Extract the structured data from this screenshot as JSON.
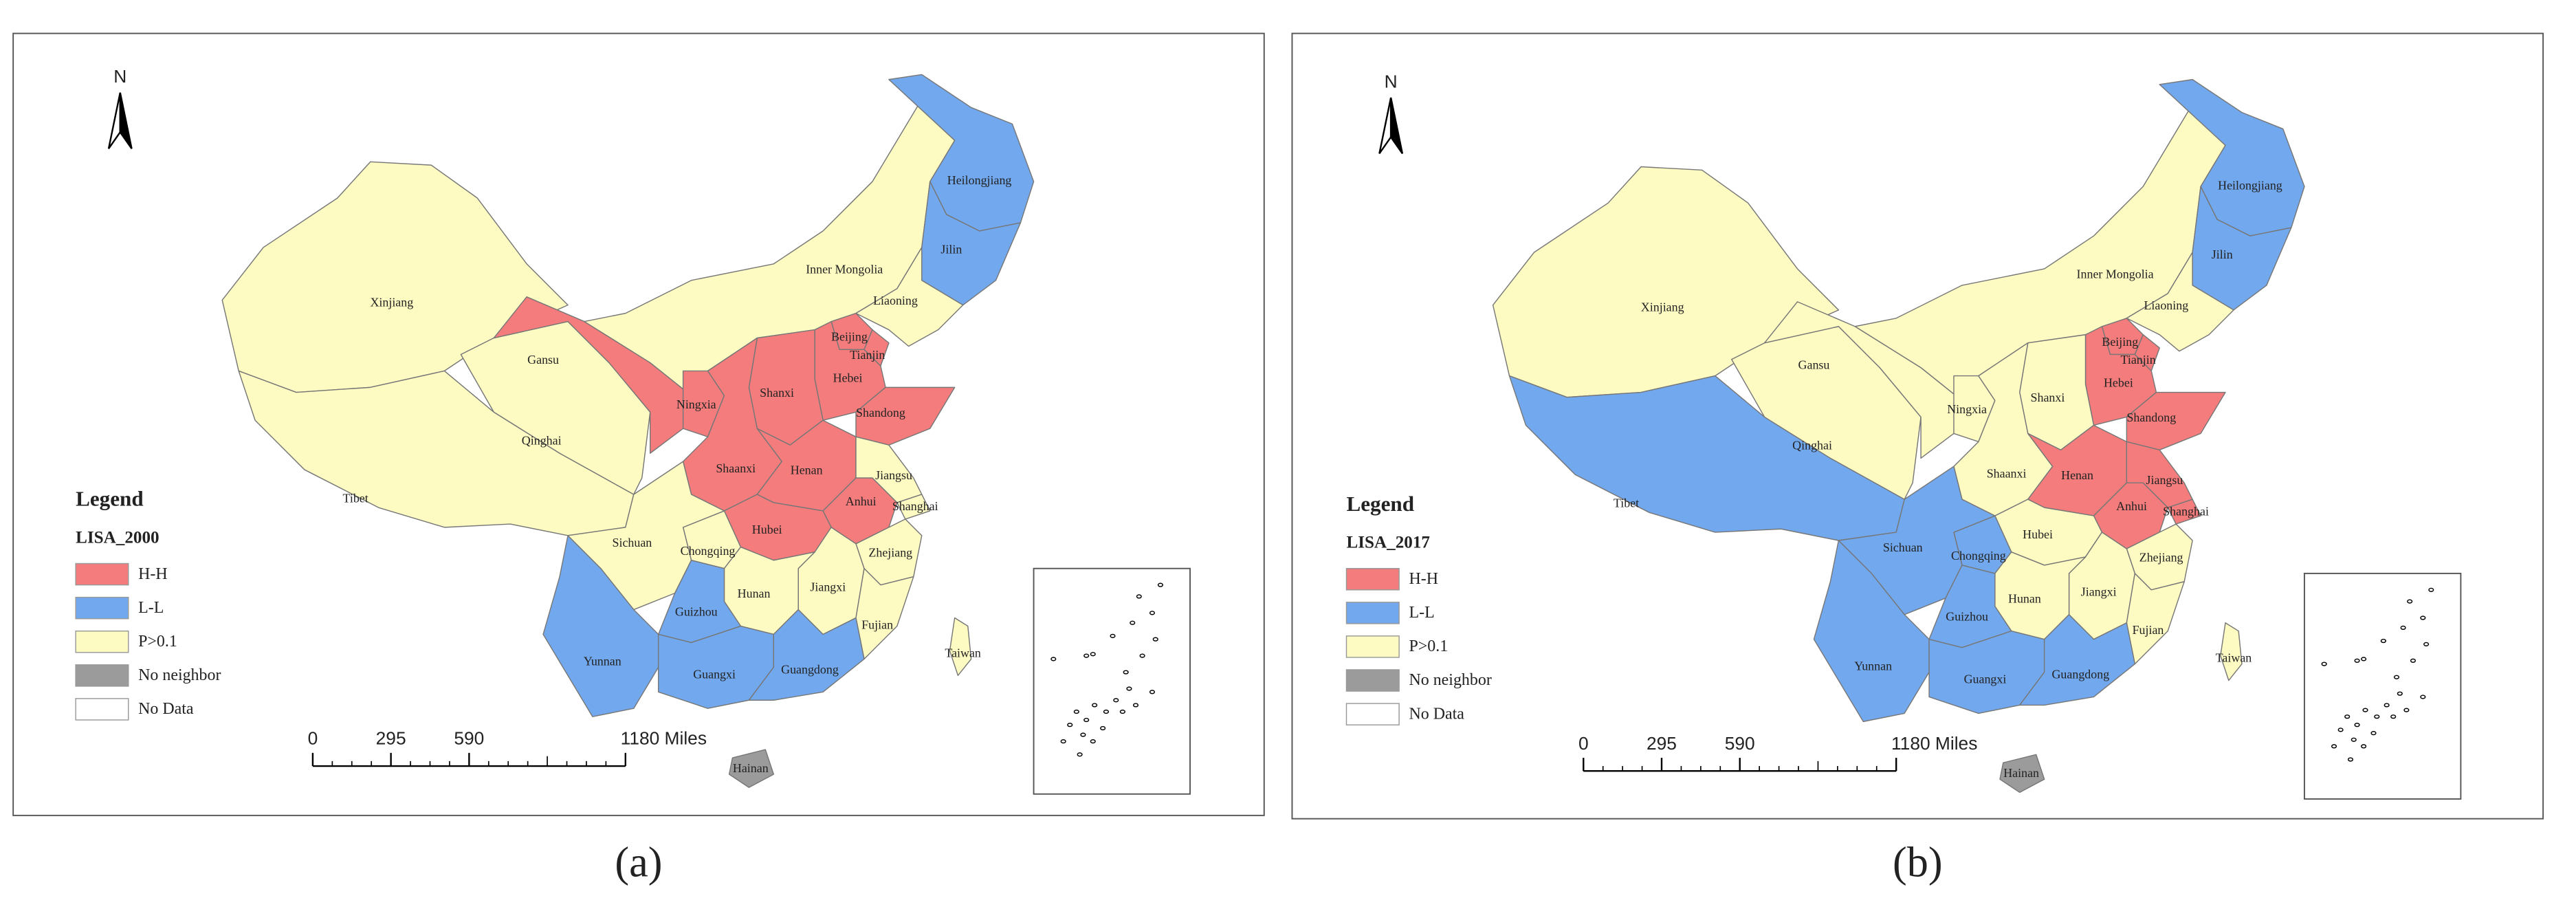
{
  "panels": [
    {
      "caption": "(a)",
      "north": "N",
      "legend": {
        "title": "Legend",
        "field": "LISA_2000",
        "classes": [
          {
            "label": "H-H",
            "color": "#f47c7c"
          },
          {
            "label": "L-L",
            "color": "#72a8ee"
          },
          {
            "label": "P>0.1",
            "color": "#fdfbc2"
          },
          {
            "label": "No neighbor",
            "color": "#9b9b9b"
          },
          {
            "label": "No Data",
            "color": "#ffffff"
          }
        ]
      },
      "scale_bar": {
        "ticks": [
          0,
          295,
          590,
          {
            "value": 1180,
            "label": "1180 Miles"
          }
        ]
      },
      "provinces": [
        {
          "name": "Xinjiang",
          "color": "#fdfbc2"
        },
        {
          "name": "Tibet",
          "color": "#fdfbc2"
        },
        {
          "name": "Qinghai",
          "color": "#fdfbc2"
        },
        {
          "name": "Gansu",
          "color": "#f47c7c"
        },
        {
          "name": "Inner Mongolia",
          "color": "#fdfbc2"
        },
        {
          "name": "Heilongjiang",
          "color": "#72a8ee"
        },
        {
          "name": "Jilin",
          "color": "#72a8ee"
        },
        {
          "name": "Liaoning",
          "color": "#fdfbc2"
        },
        {
          "name": "Beijing",
          "color": "#f47c7c"
        },
        {
          "name": "Tianjin",
          "color": "#f47c7c"
        },
        {
          "name": "Hebei",
          "color": "#f47c7c"
        },
        {
          "name": "Shanxi",
          "color": "#f47c7c"
        },
        {
          "name": "Shandong",
          "color": "#f47c7c"
        },
        {
          "name": "Ningxia",
          "color": "#f47c7c"
        },
        {
          "name": "Shaanxi",
          "color": "#f47c7c"
        },
        {
          "name": "Henan",
          "color": "#f47c7c"
        },
        {
          "name": "Jiangsu",
          "color": "#fdfbc2"
        },
        {
          "name": "Anhui",
          "color": "#f47c7c"
        },
        {
          "name": "Shanghai",
          "color": "#fdfbc2"
        },
        {
          "name": "Hubei",
          "color": "#f47c7c"
        },
        {
          "name": "Chongqing",
          "color": "#fdfbc2"
        },
        {
          "name": "Sichuan",
          "color": "#fdfbc2"
        },
        {
          "name": "Zhejiang",
          "color": "#fdfbc2"
        },
        {
          "name": "Jiangxi",
          "color": "#fdfbc2"
        },
        {
          "name": "Hunan",
          "color": "#fdfbc2"
        },
        {
          "name": "Guizhou",
          "color": "#72a8ee"
        },
        {
          "name": "Fujian",
          "color": "#fdfbc2"
        },
        {
          "name": "Yunnan",
          "color": "#72a8ee"
        },
        {
          "name": "Guangxi",
          "color": "#72a8ee"
        },
        {
          "name": "Guangdong",
          "color": "#72a8ee"
        },
        {
          "name": "Taiwan",
          "color": "#fdfbc2"
        },
        {
          "name": "Hainan",
          "color": "#9b9b9b"
        }
      ]
    },
    {
      "caption": "(b)",
      "north": "N",
      "legend": {
        "title": "Legend",
        "field": "LISA_2017",
        "classes": [
          {
            "label": "H-H",
            "color": "#f47c7c"
          },
          {
            "label": "L-L",
            "color": "#72a8ee"
          },
          {
            "label": "P>0.1",
            "color": "#fdfbc2"
          },
          {
            "label": "No neighbor",
            "color": "#9b9b9b"
          },
          {
            "label": "No Data",
            "color": "#ffffff"
          }
        ]
      },
      "scale_bar": {
        "ticks": [
          0,
          295,
          590,
          {
            "value": 1180,
            "label": "1180 Miles"
          }
        ]
      },
      "provinces": [
        {
          "name": "Xinjiang",
          "color": "#fdfbc2"
        },
        {
          "name": "Tibet",
          "color": "#72a8ee"
        },
        {
          "name": "Qinghai",
          "color": "#fdfbc2"
        },
        {
          "name": "Gansu",
          "color": "#fdfbc2"
        },
        {
          "name": "Inner Mongolia",
          "color": "#fdfbc2"
        },
        {
          "name": "Heilongjiang",
          "color": "#72a8ee"
        },
        {
          "name": "Jilin",
          "color": "#72a8ee"
        },
        {
          "name": "Liaoning",
          "color": "#fdfbc2"
        },
        {
          "name": "Beijing",
          "color": "#f47c7c"
        },
        {
          "name": "Tianjin",
          "color": "#f47c7c"
        },
        {
          "name": "Hebei",
          "color": "#f47c7c"
        },
        {
          "name": "Shanxi",
          "color": "#fdfbc2"
        },
        {
          "name": "Shandong",
          "color": "#f47c7c"
        },
        {
          "name": "Ningxia",
          "color": "#fdfbc2"
        },
        {
          "name": "Shaanxi",
          "color": "#fdfbc2"
        },
        {
          "name": "Henan",
          "color": "#f47c7c"
        },
        {
          "name": "Jiangsu",
          "color": "#f47c7c"
        },
        {
          "name": "Anhui",
          "color": "#f47c7c"
        },
        {
          "name": "Shanghai",
          "color": "#f47c7c"
        },
        {
          "name": "Hubei",
          "color": "#fdfbc2"
        },
        {
          "name": "Chongqing",
          "color": "#72a8ee"
        },
        {
          "name": "Sichuan",
          "color": "#72a8ee"
        },
        {
          "name": "Zhejiang",
          "color": "#fdfbc2"
        },
        {
          "name": "Jiangxi",
          "color": "#fdfbc2"
        },
        {
          "name": "Hunan",
          "color": "#fdfbc2"
        },
        {
          "name": "Guizhou",
          "color": "#72a8ee"
        },
        {
          "name": "Fujian",
          "color": "#fdfbc2"
        },
        {
          "name": "Yunnan",
          "color": "#72a8ee"
        },
        {
          "name": "Guangxi",
          "color": "#72a8ee"
        },
        {
          "name": "Guangdong",
          "color": "#72a8ee"
        },
        {
          "name": "Taiwan",
          "color": "#fdfbc2"
        },
        {
          "name": "Hainan",
          "color": "#9b9b9b"
        }
      ]
    }
  ]
}
